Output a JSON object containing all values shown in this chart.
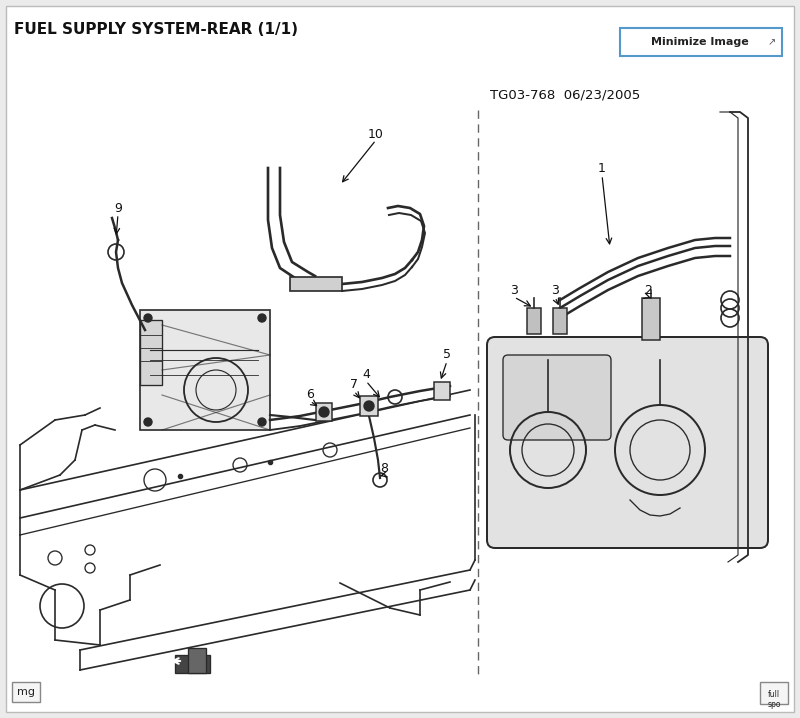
{
  "title": "FUEL SUPPLY SYSTEM-REAR (1/1)",
  "tg_code": "TG03-768  06/23/2005",
  "minimize_btn": "Minimize Image",
  "bg_color": "#ebebeb",
  "diagram_bg": "#ffffff",
  "border_color": "#bbbbbb",
  "line_color": "#2a2a2a",
  "title_fontsize": 11,
  "tg_fontsize": 9.5,
  "btn_fontsize": 8,
  "mg_label": "mg",
  "label_fontsize": 9
}
